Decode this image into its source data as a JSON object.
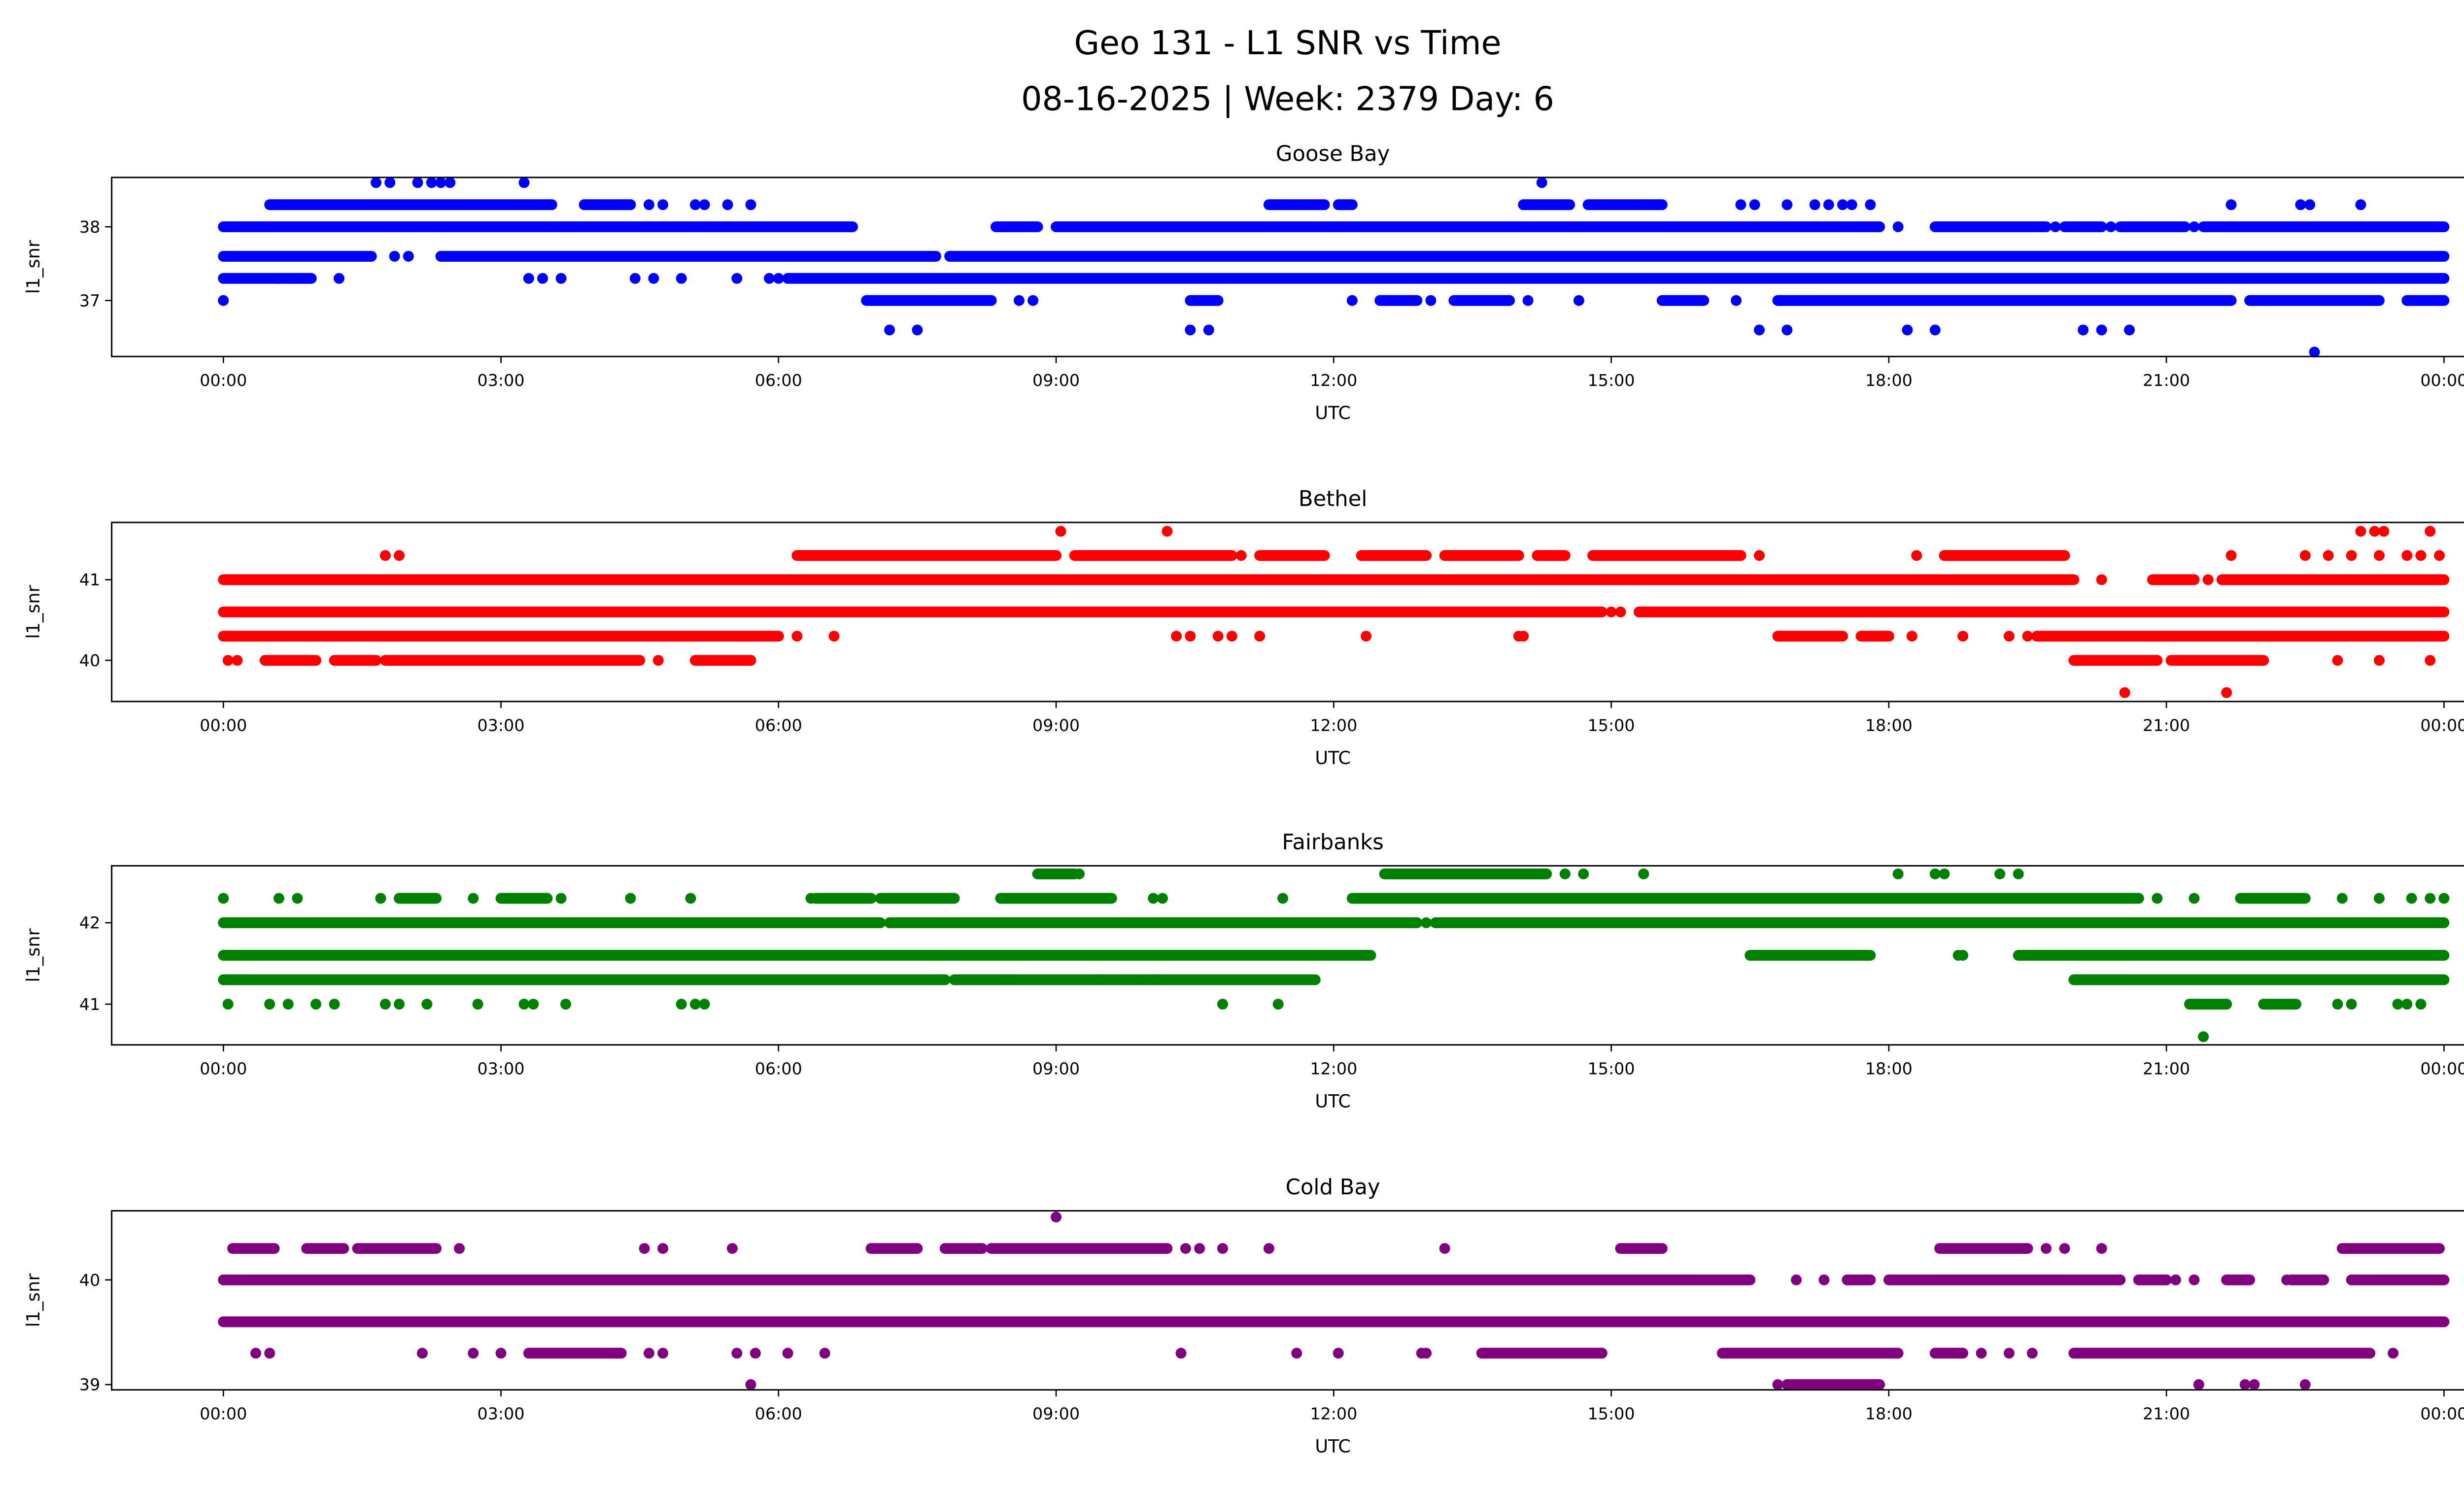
{
  "chart_data": {
    "type": "scatter",
    "title": [
      "Geo 131 - L1 SNR vs Time",
      "08-16-2025 | Week: 2379 Day: 6"
    ],
    "x_unit": "hours UTC since 00:00",
    "xticks": [
      "00:00",
      "03:00",
      "06:00",
      "09:00",
      "12:00",
      "15:00",
      "18:00",
      "21:00",
      "00:00"
    ],
    "xlim": [
      -1.2,
      25.2
    ],
    "panels": [
      {
        "title": "Goose Bay",
        "xlabel": "UTC",
        "ylabel": "l1_snr",
        "color": "#0000ff",
        "yticks": [
          37,
          38
        ],
        "ylim": [
          36.24,
          38.67
        ],
        "levels": [
          {
            "y": 38.6,
            "runs": [],
            "points": [
              1.65,
              1.8,
              2.1,
              2.25,
              2.35,
              2.45,
              3.25,
              14.25
            ]
          },
          {
            "y": 38.3,
            "runs": [
              [
                0.5,
                3.55
              ],
              [
                3.9,
                4.4
              ],
              [
                11.3,
                11.9
              ],
              [
                12.05,
                12.2
              ],
              [
                14.05,
                14.55
              ],
              [
                14.75,
                15.55
              ]
            ],
            "points": [
              4.6,
              4.75,
              5.1,
              5.2,
              5.45,
              5.7,
              16.4,
              16.55,
              16.9,
              17.2,
              17.35,
              17.5,
              17.6,
              17.8,
              21.7,
              22.45,
              22.55,
              23.1
            ]
          },
          {
            "y": 38.0,
            "runs": [
              [
                0,
                6.8
              ],
              [
                8.35,
                8.8
              ],
              [
                9.0,
                17.9
              ],
              [
                18.5,
                19.7
              ],
              [
                19.9,
                20.3
              ],
              [
                20.5,
                21.2
              ],
              [
                21.4,
                24
              ]
            ],
            "points": [
              18.1,
              19.8,
              20.4,
              21.3
            ]
          },
          {
            "y": 37.6,
            "runs": [
              [
                0,
                1.6
              ],
              [
                2.35,
                7.7
              ],
              [
                7.85,
                24
              ]
            ],
            "points": [
              1.85,
              2.0
            ]
          },
          {
            "y": 37.3,
            "runs": [
              [
                0,
                0.95
              ],
              [
                6.1,
                24
              ]
            ],
            "points": [
              0.6,
              0.75,
              0.9,
              1.25,
              3.3,
              3.45,
              3.65,
              4.45,
              4.65,
              4.95,
              5.55,
              5.9,
              6.0
            ]
          },
          {
            "y": 37.0,
            "runs": [
              [
                6.95,
                8.3
              ],
              [
                10.45,
                10.75
              ],
              [
                12.5,
                12.9
              ],
              [
                13.3,
                13.9
              ],
              [
                15.55,
                16.0
              ],
              [
                16.8,
                21.7
              ],
              [
                21.9,
                23.3
              ],
              [
                23.6,
                24
              ]
            ],
            "points": [
              0,
              8.6,
              8.75,
              12.2,
              13.05,
              14.1,
              14.65,
              16.35,
              22.05
            ]
          },
          {
            "y": 36.6,
            "runs": [],
            "points": [
              7.2,
              7.5,
              10.45,
              10.65,
              16.6,
              16.9,
              18.2,
              18.5,
              20.1,
              20.3,
              20.6
            ]
          },
          {
            "y": 36.3,
            "runs": [],
            "points": [
              22.6
            ]
          }
        ]
      },
      {
        "title": "Bethel",
        "xlabel": "UTC",
        "ylabel": "l1_snr",
        "color": "#ff0000",
        "yticks": [
          40,
          41
        ],
        "ylim": [
          39.49,
          41.71
        ],
        "levels": [
          {
            "y": 41.6,
            "runs": [],
            "points": [
              9.05,
              10.2,
              23.1,
              23.25,
              23.35,
              23.85
            ]
          },
          {
            "y": 41.3,
            "runs": [
              [
                6.2,
                9.0
              ],
              [
                9.2,
                10.9
              ],
              [
                11.2,
                11.9
              ],
              [
                12.3,
                13.0
              ],
              [
                13.2,
                14.0
              ],
              [
                14.2,
                14.5
              ],
              [
                14.8,
                16.4
              ],
              [
                18.6,
                19.9
              ]
            ],
            "points": [
              1.75,
              1.9,
              6.6,
              11.0,
              11.4,
              15.85,
              16.6,
              18.3,
              21.7,
              22.5,
              22.75,
              23.0,
              23.3,
              23.6,
              23.75,
              23.95
            ]
          },
          {
            "y": 41.0,
            "runs": [
              [
                0,
                20.0
              ],
              [
                20.85,
                21.3
              ],
              [
                21.6,
                24
              ]
            ],
            "points": [
              20.3,
              21.45
            ]
          },
          {
            "y": 40.6,
            "runs": [
              [
                0,
                14.9
              ],
              [
                15.3,
                24
              ]
            ],
            "points": [
              15.0,
              15.1
            ]
          },
          {
            "y": 40.3,
            "runs": [
              [
                0,
                6.0
              ],
              [
                16.8,
                17.5
              ],
              [
                17.7,
                18.0
              ],
              [
                19.6,
                24
              ]
            ],
            "points": [
              6.2,
              6.6,
              10.3,
              10.45,
              10.75,
              10.9,
              11.2,
              12.35,
              14.0,
              14.05,
              18.25,
              18.8,
              19.3,
              19.5
            ]
          },
          {
            "y": 40.0,
            "runs": [
              [
                0.45,
                1.0
              ],
              [
                1.2,
                1.65
              ],
              [
                1.75,
                4.5
              ],
              [
                5.1,
                5.7
              ],
              [
                20.0,
                20.9
              ],
              [
                21.05,
                22.05
              ]
            ],
            "points": [
              0.05,
              0.15,
              4.7,
              22.85,
              23.3,
              23.85
            ]
          },
          {
            "y": 39.6,
            "runs": [],
            "points": [
              20.55,
              21.65
            ]
          }
        ]
      },
      {
        "title": "Fairbanks",
        "xlabel": "UTC",
        "ylabel": "l1_snr",
        "color": "#008000",
        "yticks": [
          41,
          42
        ],
        "ylim": [
          40.5,
          42.7
        ],
        "levels": [
          {
            "y": 42.6,
            "runs": [
              [
                8.8,
                9.2
              ],
              [
                12.55,
                14.3
              ]
            ],
            "points": [
              9.25,
              14.5,
              14.7,
              15.35,
              18.1,
              18.5,
              18.6,
              19.2,
              19.4
            ]
          },
          {
            "y": 42.3,
            "runs": [
              [
                1.9,
                2.3
              ],
              [
                3.0,
                3.5
              ],
              [
                6.4,
                7.0
              ],
              [
                7.1,
                7.9
              ],
              [
                8.4,
                9.6
              ],
              [
                12.2,
                20.7
              ],
              [
                21.8,
                22.5
              ]
            ],
            "points": [
              0,
              0.6,
              0.8,
              1.7,
              2.7,
              3.65,
              4.4,
              5.05,
              6.35,
              10.05,
              10.15,
              11.45,
              20.9,
              21.3,
              22.9,
              23.3,
              23.65,
              23.85,
              24.0
            ]
          },
          {
            "y": 42.0,
            "runs": [
              [
                0,
                7.1
              ],
              [
                7.2,
                12.9
              ],
              [
                13.1,
                24
              ]
            ],
            "points": [
              13.0
            ]
          },
          {
            "y": 41.6,
            "runs": [
              [
                0,
                12.4
              ],
              [
                16.5,
                17.8
              ],
              [
                19.4,
                24
              ]
            ],
            "points": [
              18.75,
              18.8
            ]
          },
          {
            "y": 41.3,
            "runs": [
              [
                0,
                7.8
              ],
              [
                7.9,
                11.8
              ],
              [
                20.0,
                24
              ]
            ],
            "points": [
              8.45,
              8.55,
              9.5,
              9.9,
              10.05
            ]
          },
          {
            "y": 41.0,
            "runs": [
              [
                21.25,
                21.65
              ],
              [
                22.05,
                22.4
              ]
            ],
            "points": [
              0.05,
              0.5,
              0.7,
              1.0,
              1.2,
              1.75,
              1.9,
              2.2,
              2.75,
              3.25,
              3.35,
              3.7,
              4.95,
              5.1,
              5.2,
              10.8,
              11.4,
              22.85,
              23.0,
              23.5,
              23.6,
              23.75
            ]
          },
          {
            "y": 40.6,
            "runs": [],
            "points": [
              21.4
            ]
          }
        ]
      },
      {
        "title": "Cold Bay",
        "xlabel": "UTC",
        "ylabel": "l1_snr",
        "color": "#800080",
        "yticks": [
          39,
          40
        ],
        "ylim": [
          38.95,
          40.66
        ],
        "levels": [
          {
            "y": 40.6,
            "runs": [],
            "points": [
              9.0
            ]
          },
          {
            "y": 40.3,
            "runs": [
              [
                0.1,
                0.55
              ],
              [
                0.9,
                1.3
              ],
              [
                1.45,
                2.3
              ],
              [
                7.0,
                7.5
              ],
              [
                7.8,
                8.2
              ],
              [
                8.3,
                10.2
              ],
              [
                15.1,
                15.55
              ],
              [
                18.55,
                19.5
              ],
              [
                22.9,
                23.95
              ]
            ],
            "points": [
              2.55,
              4.55,
              4.75,
              5.5,
              10.4,
              10.55,
              10.8,
              11.3,
              13.2,
              19.7,
              19.9,
              20.3
            ]
          },
          {
            "y": 40.0,
            "runs": [
              [
                0,
                16.5
              ],
              [
                17.55,
                17.8
              ],
              [
                18.0,
                20.5
              ],
              [
                20.7,
                21.0
              ],
              [
                21.65,
                21.9
              ],
              [
                22.35,
                22.7
              ],
              [
                23.0,
                24
              ]
            ],
            "points": [
              17.0,
              17.3,
              21.1,
              21.3,
              22.3
            ]
          },
          {
            "y": 39.6,
            "runs": [
              [
                0,
                24
              ]
            ],
            "points": []
          },
          {
            "y": 39.3,
            "runs": [
              [
                3.3,
                4.3
              ],
              [
                13.6,
                14.9
              ],
              [
                16.2,
                18.1
              ],
              [
                18.5,
                18.8
              ],
              [
                20.0,
                23.2
              ]
            ],
            "points": [
              0.35,
              0.5,
              2.15,
              2.7,
              3.0,
              4.6,
              4.75,
              5.55,
              5.75,
              6.1,
              6.5,
              10.35,
              11.6,
              12.05,
              12.95,
              13.0,
              19.0,
              19.3,
              19.55,
              23.45
            ]
          },
          {
            "y": 39.0,
            "runs": [
              [
                16.9,
                17.9
              ]
            ],
            "points": [
              5.7,
              16.8,
              21.35,
              21.85,
              21.95,
              22.5
            ]
          }
        ]
      }
    ]
  }
}
